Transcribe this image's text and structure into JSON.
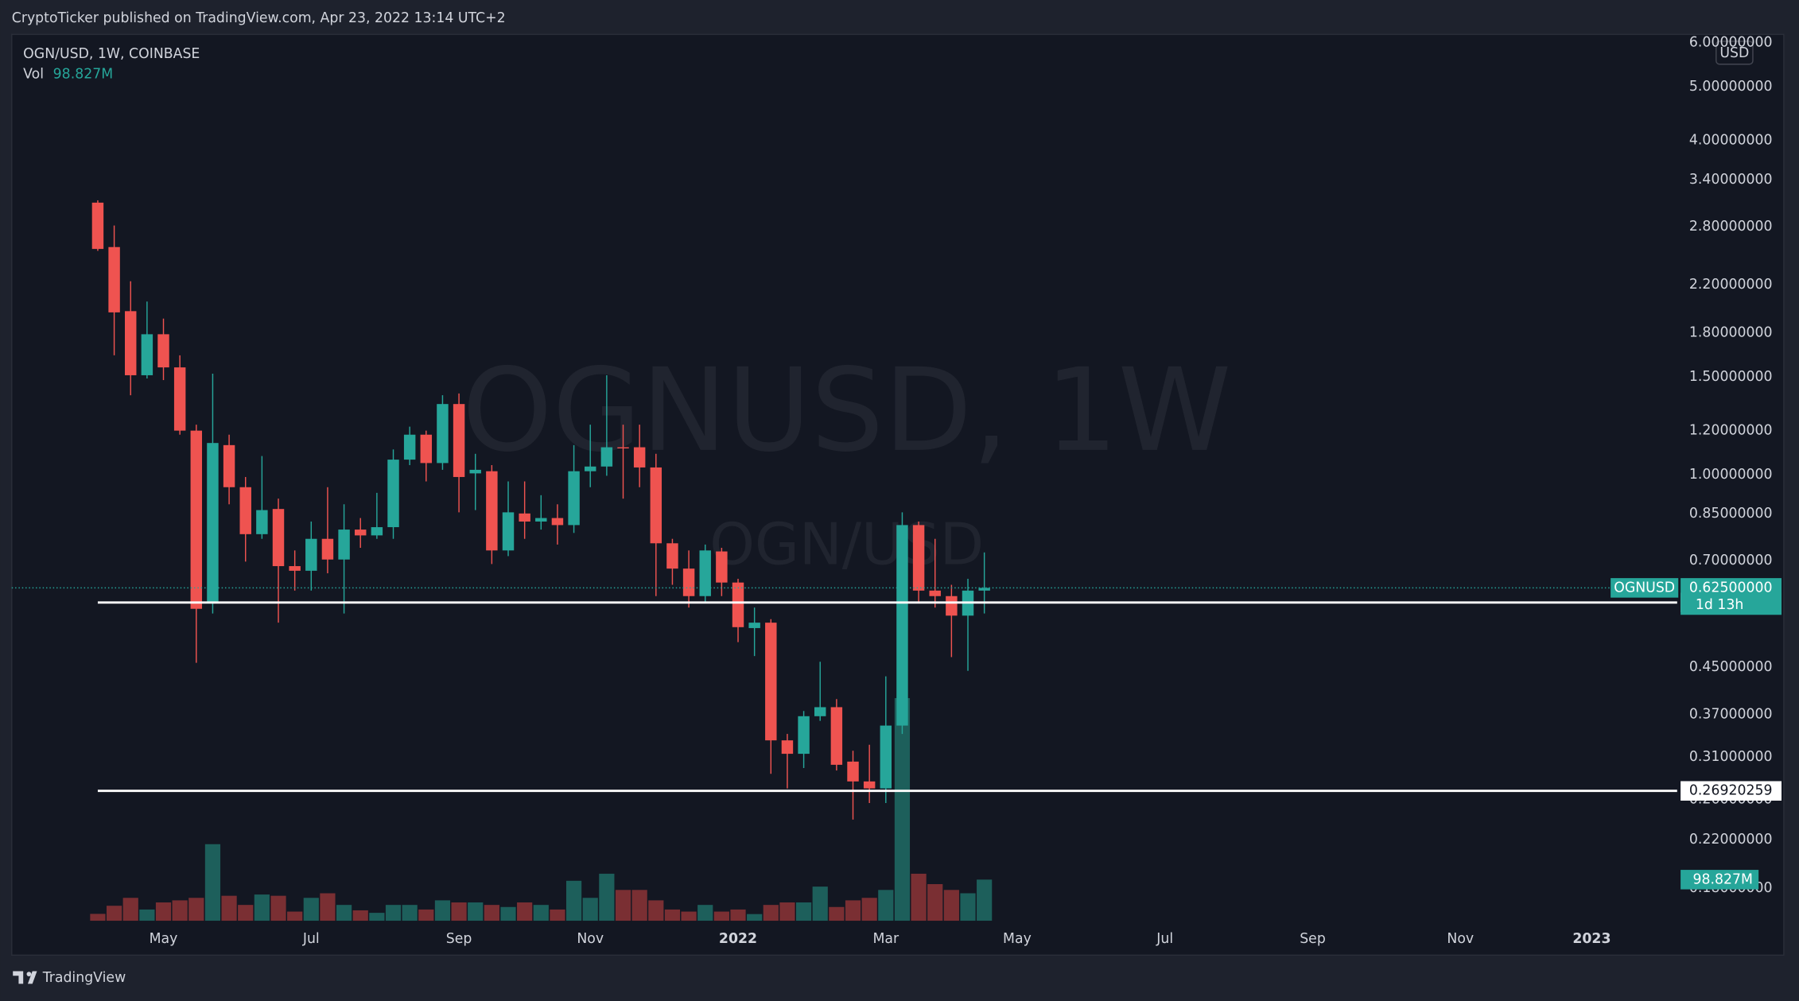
{
  "publisher_line": "CryptoTicker published on TradingView.com, Apr 23, 2022 13:14 UTC+2",
  "footer_brand": "TradingView",
  "chart_data": {
    "type": "candlestick",
    "title": "OGN/USD, 1W, COINBASE",
    "watermark": "OGNUSD, 1W",
    "watermark_sub": "OGN/USD",
    "currency": "USD",
    "symbol": "OGNUSD",
    "countdown": "1d 13h",
    "log_scale": true,
    "grid": false,
    "up_color": "#26a69a",
    "down_color": "#ef5350",
    "up_volume_color": "#1d5f5b",
    "down_volume_color": "#7a2f33",
    "x": [
      0,
      1,
      2,
      3,
      4,
      5,
      6,
      7,
      8,
      9,
      10,
      11,
      12,
      13,
      14,
      15,
      16,
      17,
      18,
      19,
      20,
      21,
      22,
      23,
      24,
      25,
      26,
      27,
      28,
      29,
      30,
      31,
      32,
      33,
      34,
      35,
      36,
      37,
      38,
      39,
      40,
      41,
      42,
      43,
      44,
      45,
      46,
      47,
      48,
      49,
      50,
      51,
      52,
      53,
      54
    ],
    "open": [
      3.09,
      2.57,
      1.97,
      1.51,
      1.79,
      1.56,
      1.2,
      0.59,
      1.13,
      0.949,
      0.781,
      0.867,
      0.684,
      0.671,
      0.766,
      0.703,
      0.796,
      0.777,
      0.804,
      1.064,
      1.18,
      1.049,
      1.34,
      1.005,
      1.014,
      0.73,
      0.851,
      0.823,
      0.835,
      0.811,
      1.014,
      1.034,
      1.12,
      1.12,
      1.03,
      0.752,
      0.677,
      0.604,
      0.727,
      0.639,
      0.529,
      0.541,
      0.332,
      0.314,
      0.367,
      0.381,
      0.304,
      0.28,
      0.272,
      0.353,
      0.811,
      0.618,
      0.604,
      0.557,
      0.618
    ],
    "high": [
      3.12,
      2.81,
      2.23,
      2.05,
      1.91,
      1.64,
      1.23,
      1.52,
      1.18,
      0.99,
      1.08,
      0.905,
      0.73,
      0.823,
      0.949,
      0.884,
      0.835,
      0.927,
      1.11,
      1.22,
      1.2,
      1.39,
      1.4,
      1.09,
      1.04,
      0.972,
      0.972,
      0.918,
      0.884,
      1.13,
      1.23,
      1.51,
      1.23,
      1.23,
      1.09,
      0.766,
      0.73,
      0.748,
      0.738,
      0.649,
      0.576,
      0.549,
      0.341,
      0.375,
      0.46,
      0.394,
      0.318,
      0.326,
      0.433,
      0.855,
      0.823,
      0.766,
      0.633,
      0.649,
      0.724
    ],
    "low": [
      2.53,
      1.64,
      1.39,
      1.49,
      1.48,
      1.18,
      0.458,
      0.562,
      0.884,
      0.697,
      0.766,
      0.541,
      0.618,
      0.618,
      0.664,
      0.562,
      0.738,
      0.766,
      0.766,
      1.04,
      0.972,
      1.02,
      0.855,
      0.863,
      0.69,
      0.713,
      0.766,
      0.796,
      0.748,
      0.785,
      0.949,
      0.995,
      0.905,
      0.949,
      0.604,
      0.633,
      0.576,
      0.59,
      0.604,
      0.499,
      0.471,
      0.289,
      0.272,
      0.296,
      0.36,
      0.293,
      0.239,
      0.256,
      0.256,
      0.341,
      0.59,
      0.576,
      0.469,
      0.443,
      0.562
    ],
    "close": [
      2.55,
      1.96,
      1.51,
      1.79,
      1.56,
      1.2,
      0.573,
      1.14,
      0.949,
      0.781,
      0.863,
      0.684,
      0.671,
      0.766,
      0.703,
      0.796,
      0.777,
      0.804,
      1.064,
      1.18,
      1.049,
      1.34,
      0.99,
      1.02,
      0.73,
      0.855,
      0.823,
      0.835,
      0.811,
      1.014,
      1.034,
      1.12,
      1.116,
      1.03,
      0.752,
      0.677,
      0.604,
      0.73,
      0.639,
      0.531,
      0.541,
      0.332,
      0.314,
      0.367,
      0.381,
      0.3,
      0.28,
      0.272,
      0.353,
      0.811,
      0.618,
      0.604,
      0.557,
      0.618,
      0.625
    ],
    "volume_name": "Vol",
    "volume": [
      16500000,
      36000000,
      55000000,
      27000000,
      44000000,
      49000000,
      55000000,
      184000000,
      60000000,
      38000000,
      63000000,
      60000000,
      22000000,
      55000000,
      66000000,
      38000000,
      25000000,
      19000000,
      38000000,
      38000000,
      27000000,
      49000000,
      44000000,
      44000000,
      38000000,
      33000000,
      44000000,
      38000000,
      27000000,
      96000000,
      55000000,
      113000000,
      74000000,
      74000000,
      49000000,
      27000000,
      22000000,
      38000000,
      22000000,
      27000000,
      16000000,
      38000000,
      44000000,
      44000000,
      82000000,
      33000000,
      49000000,
      55000000,
      74000000,
      535000000,
      113000000,
      88000000,
      74000000,
      66000000,
      98827000
    ],
    "volume_last_label": "98.827M",
    "volume_ylim": [
      0,
      2130000000
    ],
    "last_price": {
      "value": 0.625,
      "label": "0.62500000"
    },
    "hlines": [
      0.58825761,
      0.26920259
    ],
    "xlim": [
      -5.24,
      96.2
    ],
    "xticks": [
      {
        "value": 4,
        "label": "May"
      },
      {
        "value": 13,
        "label": "Jul"
      },
      {
        "value": 22,
        "label": "Sep"
      },
      {
        "value": 30,
        "label": "Nov"
      },
      {
        "value": 39,
        "label": "2022"
      },
      {
        "value": 48,
        "label": "Mar"
      },
      {
        "value": 56,
        "label": "May"
      },
      {
        "value": 65,
        "label": "Jul"
      },
      {
        "value": 74,
        "label": "Sep"
      },
      {
        "value": 83,
        "label": "Nov"
      },
      {
        "value": 91,
        "label": "2023"
      }
    ],
    "ylim": [
      0.1556,
      6.21
    ],
    "yticks": [
      {
        "value": 6,
        "label": "6.00000000"
      },
      {
        "value": 5,
        "label": "5.00000000"
      },
      {
        "value": 4,
        "label": "4.00000000"
      },
      {
        "value": 3.4,
        "label": "3.40000000"
      },
      {
        "value": 2.8,
        "label": "2.80000000"
      },
      {
        "value": 2.2,
        "label": "2.20000000"
      },
      {
        "value": 1.8,
        "label": "1.80000000"
      },
      {
        "value": 1.5,
        "label": "1.50000000"
      },
      {
        "value": 1.2,
        "label": "1.20000000"
      },
      {
        "value": 1,
        "label": "1.00000000"
      },
      {
        "value": 0.85,
        "label": "0.85000000"
      },
      {
        "value": 0.7,
        "label": "0.70000000"
      },
      {
        "value": 0.45,
        "label": "0.45000000"
      },
      {
        "value": 0.37,
        "label": "0.37000000"
      },
      {
        "value": 0.31,
        "label": "0.31000000"
      },
      {
        "value": 0.26,
        "label": "0.26000000"
      },
      {
        "value": 0.22,
        "label": "0.22000000"
      },
      {
        "value": 0.18,
        "label": "0.18000000"
      }
    ]
  }
}
